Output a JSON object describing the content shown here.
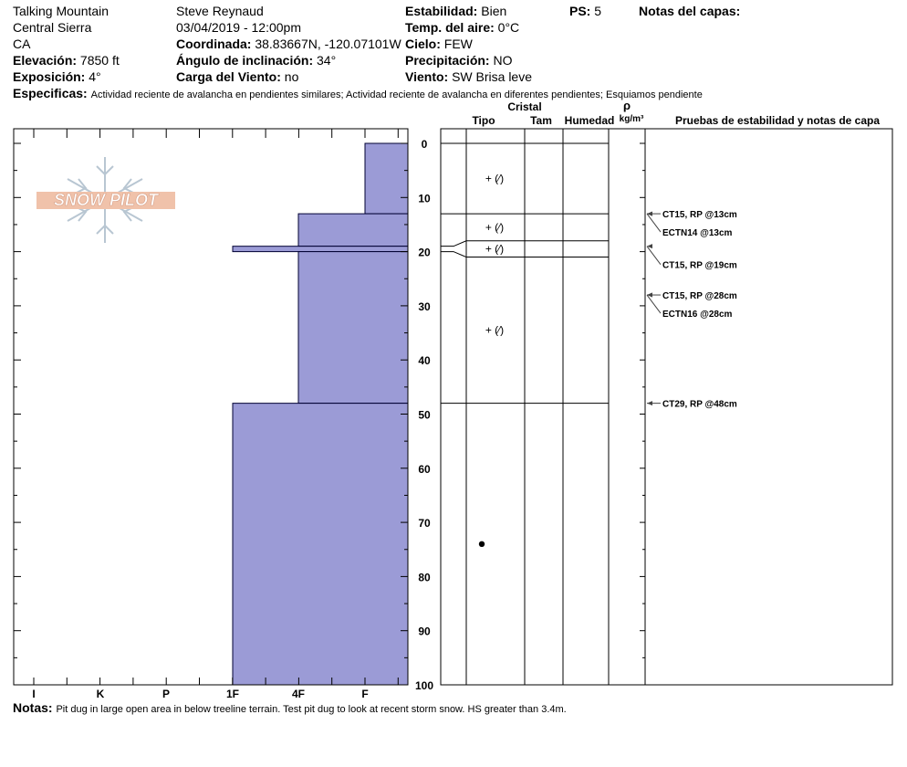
{
  "header": {
    "location": "Talking Mountain",
    "range": "Central Sierra",
    "state": "CA",
    "elevation_label": "Elevación:",
    "elevation": "7850 ft",
    "aspect_label": "Exposición:",
    "aspect": "4°",
    "observer": "Steve Reynaud",
    "datetime": "03/04/2019 - 12:00pm",
    "coord_label": "Coordinada:",
    "coord": "38.83667N, -120.07101W",
    "slope_label": "Ángulo de inclinación:",
    "slope": "34°",
    "wind_load_label": "Carga del Viento:",
    "wind_load": "no",
    "stability_label": "Estabilidad:",
    "stability": "Bien",
    "air_temp_label": "Temp. del aire:",
    "air_temp": "0°C",
    "sky_label": "Cielo:",
    "sky": "FEW",
    "precip_label": "Precipitación:",
    "precip": "NO",
    "wind_label": "Viento:",
    "wind": "SW Brisa leve",
    "ps_label": "PS:",
    "ps": "5",
    "layer_notes_label": "Notas del capas:",
    "specifics_label": "Especificas:",
    "specifics": "Actividad reciente de avalancha en pendientes similares; Actividad reciente de avalancha en diferentes pendientes; Esquiamos pendiente"
  },
  "logo_text": "SNOW PILOT",
  "columns": {
    "crystal": "Cristal",
    "type": "Tipo",
    "size": "Tam",
    "humidity": "Humedad",
    "rho": "ρ",
    "density_unit": "kg/m³",
    "tests": "Pruebas de estabilidad y notas de capa"
  },
  "notes_label": "Notas:",
  "notes": "Pit dug in large open area in below treeline terrain. Test pit dug to look at recent storm snow. HS greater than 3.4m.",
  "chart_data": {
    "type": "bar",
    "title": "",
    "y_range": [
      0,
      100
    ],
    "y_ticks": [
      "0",
      "10",
      "20",
      "30",
      "40",
      "50",
      "60",
      "70",
      "80",
      "90",
      "100"
    ],
    "hardness_ticks": [
      "I",
      "K",
      "P",
      "1F",
      "4F",
      "F"
    ],
    "hardness_scale": [
      "F",
      "4F",
      "1F",
      "P",
      "K",
      "I"
    ],
    "layers": [
      {
        "top": 0,
        "bottom": 13,
        "hardness": "F"
      },
      {
        "top": 13,
        "bottom": 19,
        "hardness": "4F"
      },
      {
        "top": 19,
        "bottom": 20,
        "hardness": "1F"
      },
      {
        "top": 20,
        "bottom": 48,
        "hardness": "4F"
      },
      {
        "top": 48,
        "bottom": 100,
        "hardness": "1F"
      }
    ],
    "crystal_layers": [
      {
        "top": 0,
        "bottom": 13,
        "symbol": "+ (⁄)"
      },
      {
        "top": 13,
        "bottom": 18,
        "symbol": "+ (⁄)"
      },
      {
        "top": 18,
        "bottom": 21,
        "symbol": "+ (⁄)"
      },
      {
        "top": 21,
        "bottom": 48,
        "symbol": "+ (⁄)"
      },
      {
        "top": 48,
        "bottom": 100,
        "symbol": ""
      }
    ],
    "marker_depth": 74,
    "tests": [
      {
        "depth": 13,
        "label": "CT15, RP @13cm"
      },
      {
        "depth": 13,
        "label": "ECTN14 @13cm"
      },
      {
        "depth": 19,
        "label": "CT15, RP @19cm"
      },
      {
        "depth": 28,
        "label": "CT15, RP @28cm"
      },
      {
        "depth": 28,
        "label": "ECTN16 @28cm"
      },
      {
        "depth": 48,
        "label": "CT29, RP @48cm"
      }
    ]
  }
}
